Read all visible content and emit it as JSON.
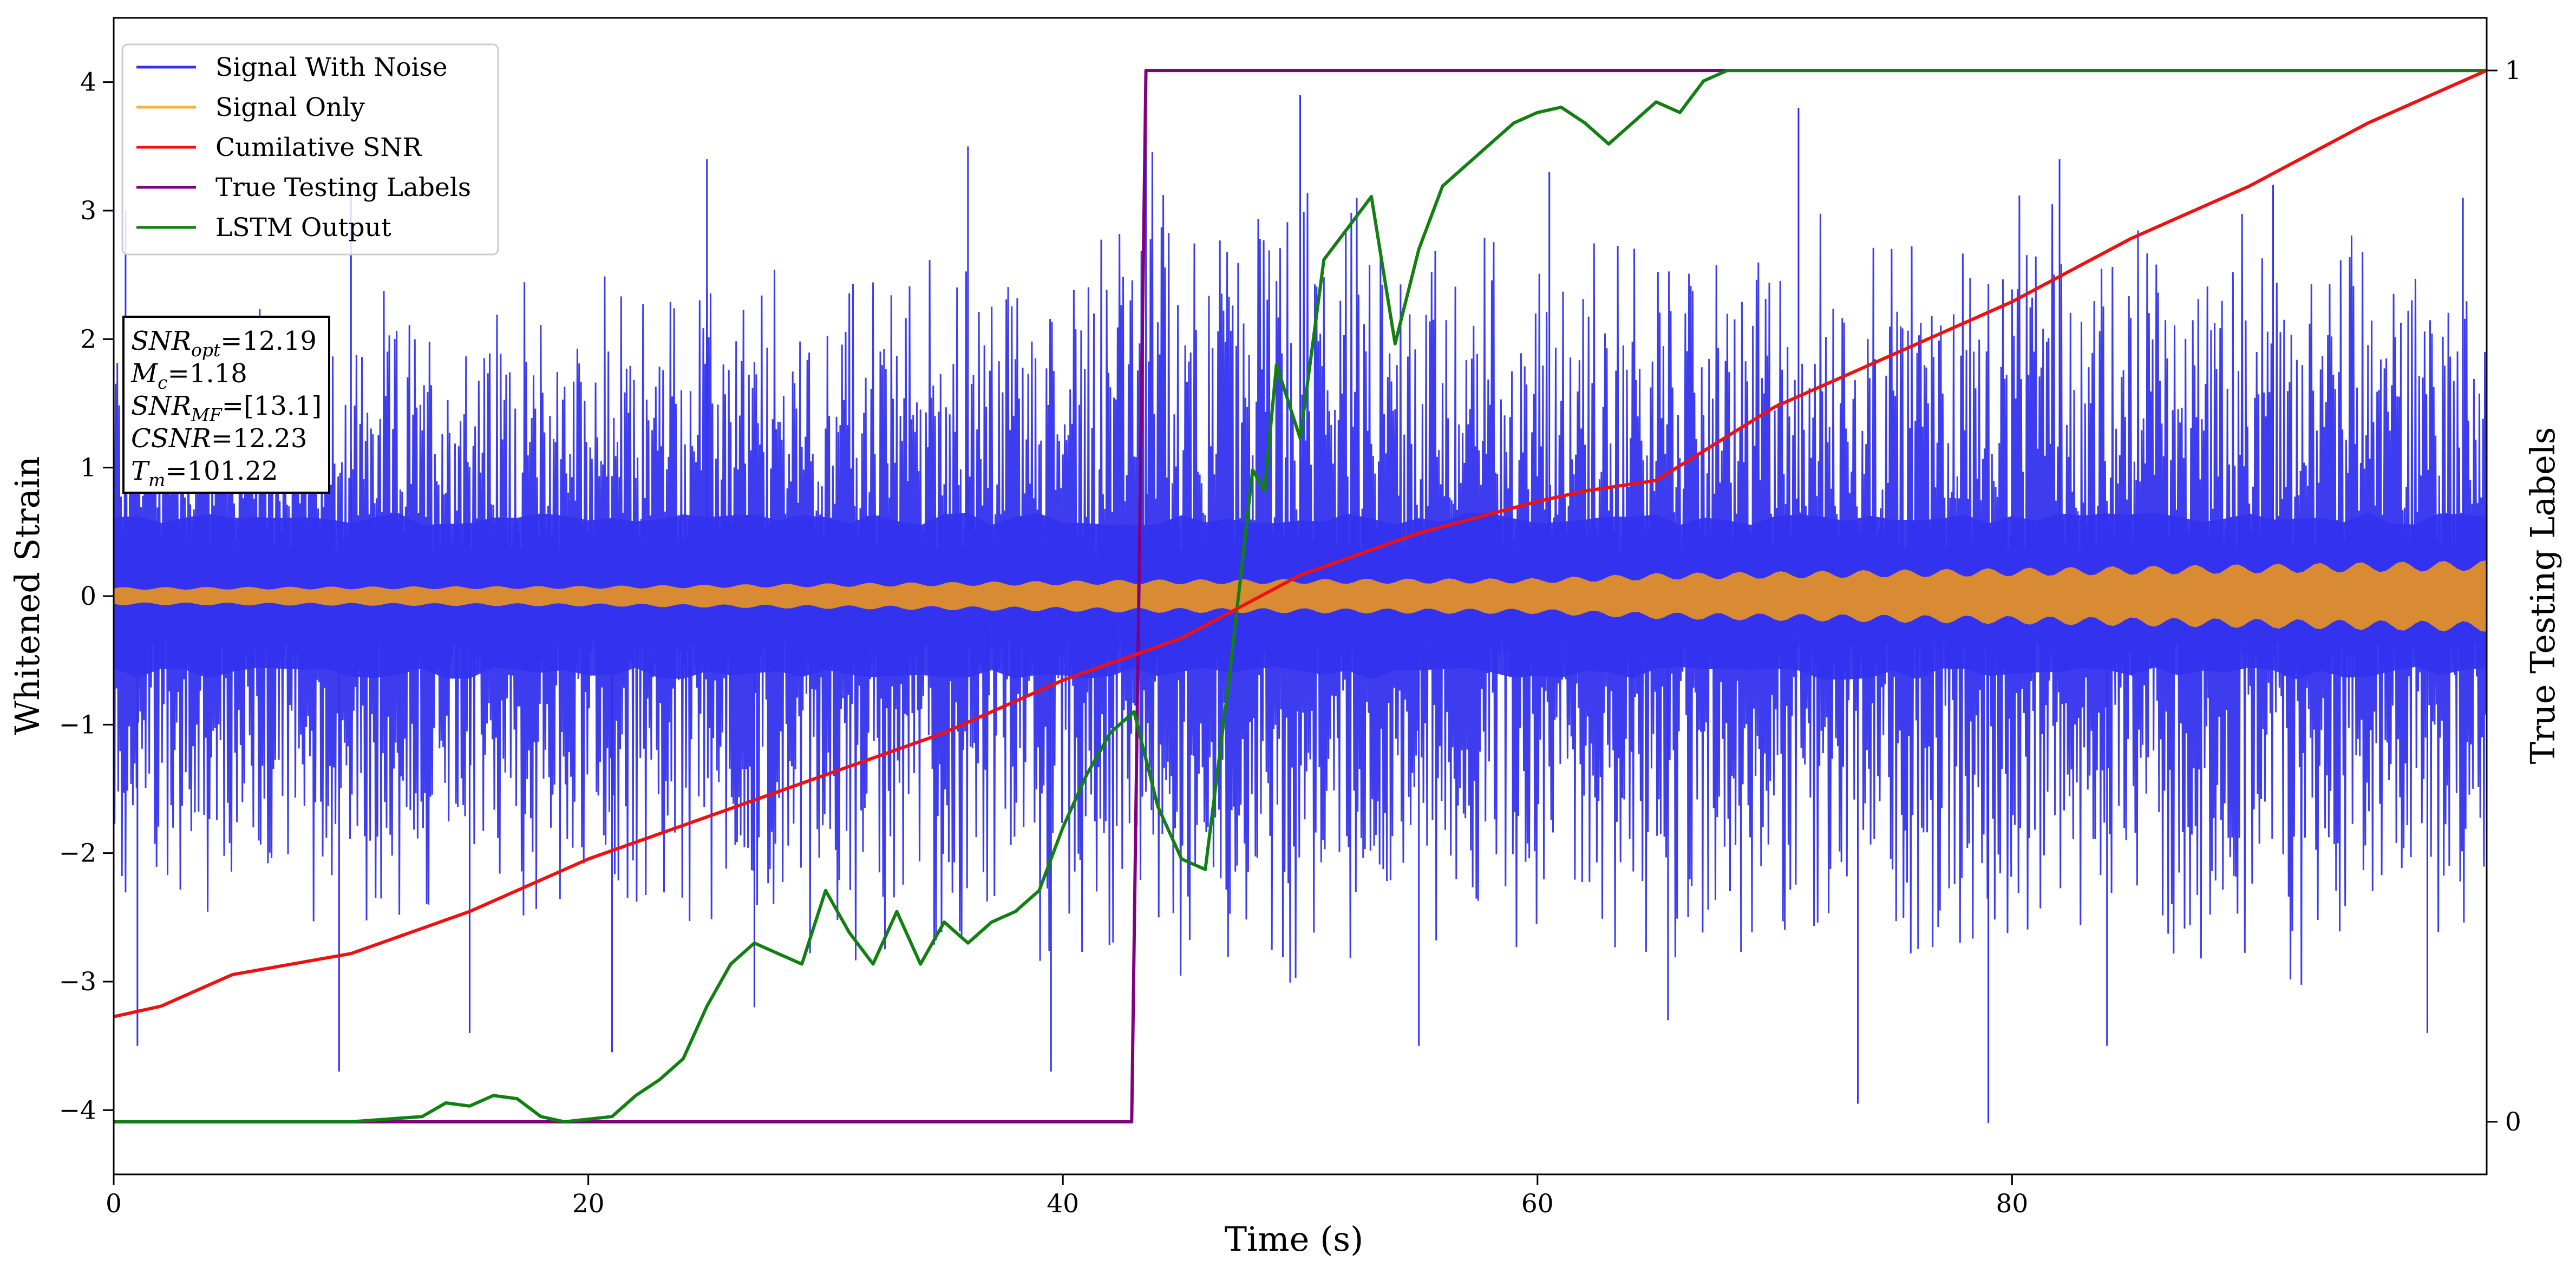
{
  "chart_data": {
    "type": "line",
    "xlabel": "Time (s)",
    "ylabel": "Whitened Strain",
    "y2label": "True Testing Labels",
    "xlim": [
      0,
      100
    ],
    "ylim": [
      -4.5,
      4.5
    ],
    "y2lim": [
      -0.05,
      1.05
    ],
    "xticks": [
      0,
      20,
      40,
      60,
      80
    ],
    "yticks": [
      -4,
      -3,
      -2,
      -1,
      0,
      1,
      2,
      3,
      4
    ],
    "y2ticks": [
      0,
      1
    ],
    "legend_position": "top-left",
    "legend": [
      {
        "name": "Signal With Noise",
        "color": "#3333ee"
      },
      {
        "name": "Signal Only",
        "color": "#f5b042"
      },
      {
        "name": "Cumilative SNR",
        "color": "#ee1111"
      },
      {
        "name": "True Testing Labels",
        "color": "#800080"
      },
      {
        "name": "LSTM Output",
        "color": "#118011"
      }
    ],
    "info_box": {
      "snr_opt": "SNR",
      "snr_opt_sub": "opt",
      "snr_opt_val": "=12.19",
      "mc": "M",
      "mc_sub": "c",
      "mc_val": "=1.18",
      "snr_mf": "SNR",
      "snr_mf_sub": "MF",
      "snr_mf_val": "=[13.1]",
      "csnr": "CSNR",
      "csnr_val": "=12.23",
      "tm": "T",
      "tm_sub": "m",
      "tm_val": "=101.22"
    },
    "series": [
      {
        "name": "Signal With Noise",
        "axis": "left",
        "description_type": "noise-envelope",
        "envelope_x": [
          0,
          10,
          20,
          30,
          40,
          43,
          50,
          60,
          70,
          80,
          90,
          100
        ],
        "envelope_upper": [
          2.6,
          2.4,
          2.6,
          2.8,
          2.9,
          3.7,
          3.4,
          3.0,
          3.1,
          3.2,
          3.2,
          3.0
        ],
        "envelope_lower": [
          -2.6,
          -2.8,
          -2.7,
          -3.0,
          -3.1,
          -3.0,
          -3.2,
          -3.1,
          -3.0,
          -3.3,
          -3.2,
          -3.0
        ],
        "spikes": [
          {
            "x": 1.0,
            "y": -3.5
          },
          {
            "x": 9.5,
            "y": -3.7
          },
          {
            "x": 15.0,
            "y": -3.4
          },
          {
            "x": 21.0,
            "y": -3.55
          },
          {
            "x": 27.0,
            "y": -3.2
          },
          {
            "x": 39.5,
            "y": -3.7
          },
          {
            "x": 55.0,
            "y": -3.5
          },
          {
            "x": 65.5,
            "y": -3.3
          },
          {
            "x": 73.5,
            "y": -3.95
          },
          {
            "x": 79.0,
            "y": -4.1
          },
          {
            "x": 84.0,
            "y": -3.5
          },
          {
            "x": 97.5,
            "y": -3.4
          },
          {
            "x": 0.5,
            "y": 3.0
          },
          {
            "x": 10.0,
            "y": 3.2
          },
          {
            "x": 25.0,
            "y": 3.4
          },
          {
            "x": 36.0,
            "y": 3.5
          },
          {
            "x": 43.5,
            "y": 3.8
          },
          {
            "x": 50.0,
            "y": 3.9
          },
          {
            "x": 60.5,
            "y": 3.3
          },
          {
            "x": 71.0,
            "y": 3.8
          },
          {
            "x": 82.0,
            "y": 3.4
          },
          {
            "x": 91.0,
            "y": 3.2
          },
          {
            "x": 99.0,
            "y": 3.1
          }
        ]
      },
      {
        "name": "Signal Only",
        "axis": "left",
        "description_type": "band",
        "x": [
          0,
          20,
          40,
          43,
          60,
          65,
          80,
          100
        ],
        "amplitude": [
          0.07,
          0.08,
          0.12,
          0.13,
          0.14,
          0.18,
          0.22,
          0.28
        ]
      },
      {
        "name": "Cumilative SNR",
        "axis": "right",
        "x": [
          0,
          2,
          5,
          10,
          15,
          20,
          25,
          30,
          35,
          40,
          45,
          50,
          55,
          60,
          62,
          65,
          70,
          75,
          80,
          85,
          90,
          95,
          100
        ],
        "y": [
          0.1,
          0.11,
          0.14,
          0.16,
          0.2,
          0.25,
          0.29,
          0.33,
          0.37,
          0.42,
          0.46,
          0.52,
          0.56,
          0.59,
          0.6,
          0.61,
          0.68,
          0.73,
          0.78,
          0.84,
          0.89,
          0.95,
          1.0
        ]
      },
      {
        "name": "True Testing Labels",
        "axis": "right",
        "x": [
          0,
          42.9,
          43.5,
          100
        ],
        "y": [
          0,
          0,
          1,
          1
        ]
      },
      {
        "name": "LSTM Output",
        "axis": "right",
        "x": [
          0,
          10,
          13,
          14,
          15,
          16,
          17,
          18,
          19,
          21,
          22,
          23,
          24,
          25,
          26,
          27,
          28,
          29,
          30,
          31,
          32,
          33,
          34,
          35,
          36,
          37,
          38,
          39,
          40,
          41,
          42,
          43,
          44,
          45,
          46,
          47,
          48,
          48.5,
          49,
          50,
          51,
          52,
          53,
          54,
          55,
          56,
          57,
          58,
          59,
          60,
          61,
          62,
          63,
          64,
          65,
          66,
          67,
          68,
          70,
          72,
          75,
          100
        ],
        "y": [
          0,
          0,
          0.005,
          0.018,
          0.015,
          0.025,
          0.022,
          0.005,
          0.0,
          0.005,
          0.025,
          0.04,
          0.06,
          0.11,
          0.15,
          0.17,
          0.16,
          0.15,
          0.22,
          0.18,
          0.15,
          0.2,
          0.15,
          0.19,
          0.17,
          0.19,
          0.2,
          0.22,
          0.28,
          0.33,
          0.37,
          0.39,
          0.3,
          0.25,
          0.24,
          0.42,
          0.62,
          0.6,
          0.72,
          0.65,
          0.82,
          0.85,
          0.88,
          0.74,
          0.83,
          0.89,
          0.91,
          0.93,
          0.95,
          0.96,
          0.965,
          0.95,
          0.93,
          0.95,
          0.97,
          0.96,
          0.99,
          1.0,
          1.0,
          1.0,
          1.0,
          1.0
        ]
      }
    ]
  }
}
